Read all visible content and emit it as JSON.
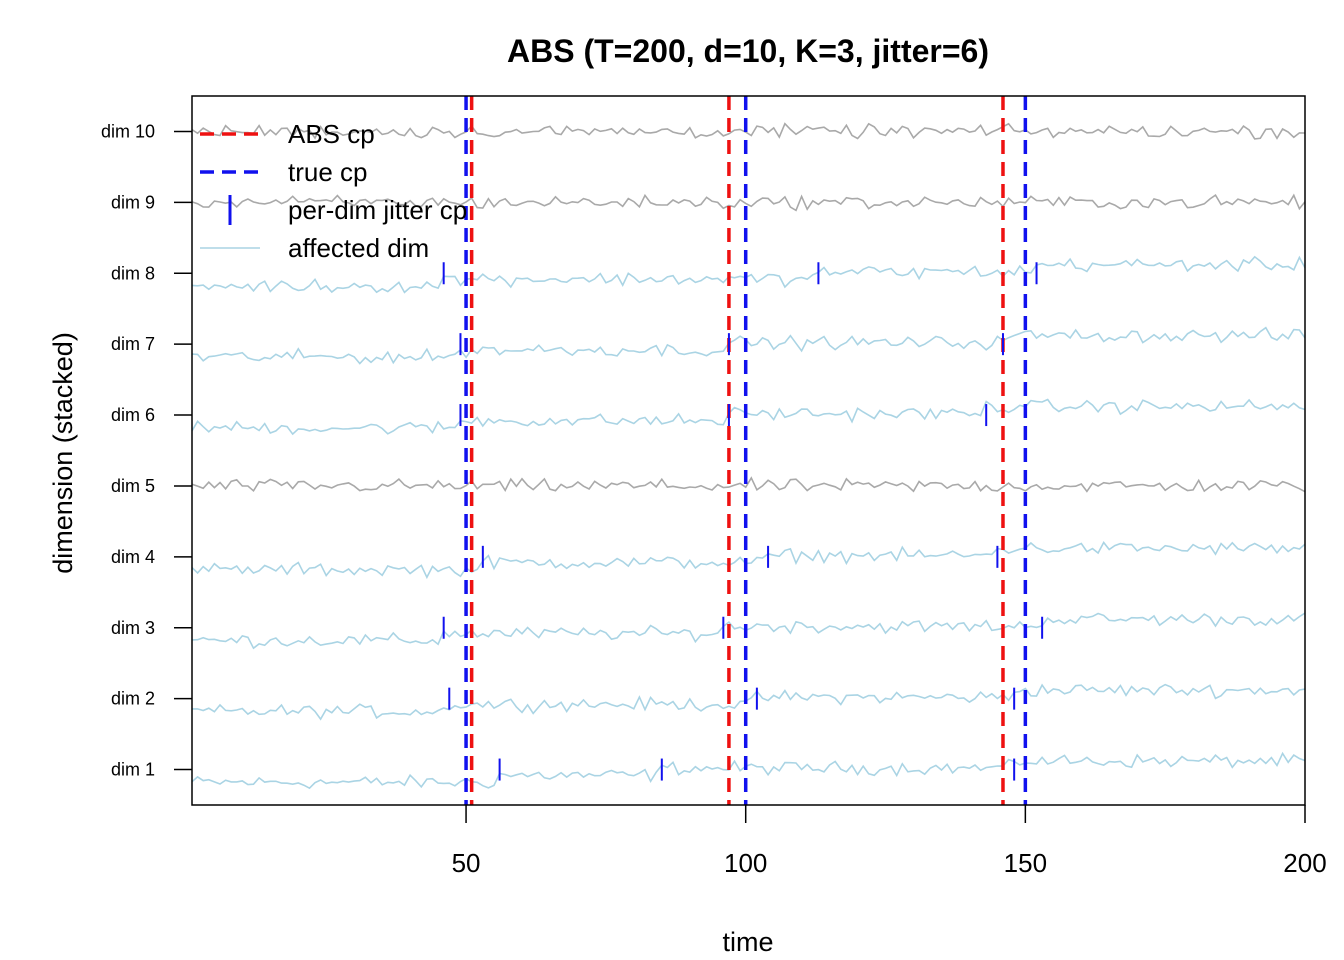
{
  "chart_data": {
    "type": "line",
    "title": "ABS (T=200, d=10, K=3, jitter=6)",
    "xlabel": "time",
    "ylabel": "dimension (stacked)",
    "xlim": [
      1,
      200
    ],
    "ylim": [
      0.5,
      10.5
    ],
    "x_ticks": [
      50,
      100,
      150,
      200
    ],
    "dimensions": [
      "dim 1",
      "dim 2",
      "dim 3",
      "dim 4",
      "dim 5",
      "dim 6",
      "dim 7",
      "dim 8",
      "dim 9",
      "dim 10"
    ],
    "affected_dims": [
      1,
      2,
      3,
      4,
      6,
      7,
      8
    ],
    "unaffected_dims": [
      5,
      9,
      10
    ],
    "true_cp": [
      50,
      100,
      150
    ],
    "abs_cp": [
      51,
      97,
      146
    ],
    "per_dim_jitter_cp": {
      "1": [
        56,
        85,
        148
      ],
      "2": [
        47,
        102,
        148
      ],
      "3": [
        46,
        96,
        153
      ],
      "4": [
        53,
        104,
        145
      ],
      "6": [
        49,
        97,
        143
      ],
      "7": [
        49,
        97,
        146
      ],
      "8": [
        46,
        113,
        152
      ]
    },
    "legend": {
      "position": "top-left",
      "entries": [
        {
          "label": "ABS cp",
          "color": "#ee1111",
          "style": "dashed"
        },
        {
          "label": "true cp",
          "color": "#1111ee",
          "style": "dashed"
        },
        {
          "label": "per-dim jitter cp",
          "color": "#1111ee",
          "style": "tick"
        },
        {
          "label": "affected dim",
          "color": "#aad4e4",
          "style": "line"
        }
      ]
    },
    "colors": {
      "affected": "#aad4e4",
      "unaffected": "#a9a9a9",
      "abs_cp": "#ee1111",
      "true_cp": "#1111ee",
      "jitter_tick": "#1111ee"
    }
  }
}
